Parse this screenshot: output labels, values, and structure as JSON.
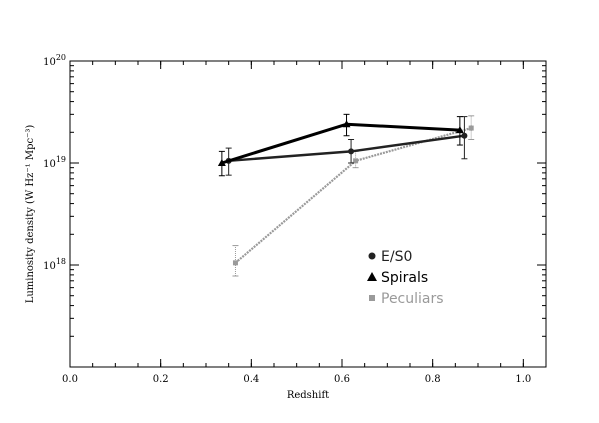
{
  "chart_data": {
    "type": "line",
    "title": "",
    "xlabel": "Redshift",
    "ylabel": "Luminosity density (W Hz⁻¹ Mpc⁻³)",
    "xlim": [
      0.0,
      1.05
    ],
    "ylim": [
      1e+17,
      1e+20
    ],
    "yscale": "log",
    "x_ticks": [
      0.0,
      0.2,
      0.4,
      0.6,
      0.8,
      1.0
    ],
    "x_tick_labels": [
      "0.0",
      "0.2",
      "0.4",
      "0.6",
      "0.8",
      "1.0"
    ],
    "y_ticks": [
      1e+18,
      1e+19,
      1e+20
    ],
    "y_tick_labels": [
      {
        "base": "10",
        "exp": "18"
      },
      {
        "base": "10",
        "exp": "19"
      },
      {
        "base": "10",
        "exp": "20"
      }
    ],
    "grid": false,
    "legend_placement": "lower-right",
    "series": [
      {
        "name": "E/S0",
        "color": "#222222",
        "marker": "circle",
        "x": [
          0.35,
          0.62,
          0.87
        ],
        "y": [
          1.05e+19,
          1.3e+19,
          1.85e+19
        ],
        "err_low": [
          7.6e+18,
          1e+19,
          1.1e+19
        ],
        "err_high": [
          1.4e+19,
          1.7e+19,
          2.85e+19
        ]
      },
      {
        "name": "Spirals",
        "color": "#000000",
        "marker": "triangle",
        "x": [
          0.335,
          0.61,
          0.86
        ],
        "y": [
          1e+19,
          2.4e+19,
          2.1e+19
        ],
        "err_low": [
          7.5e+18,
          1.85e+19,
          1.5e+19
        ],
        "err_high": [
          1.3e+19,
          3e+19,
          2.85e+19
        ]
      },
      {
        "name": "Peculiars",
        "color": "#9a9a9a",
        "marker": "square",
        "x": [
          0.365,
          0.63,
          0.885
        ],
        "y": [
          1.05e+18,
          1.05e+19,
          2.2e+19
        ],
        "err_low": [
          7.8e+17,
          9e+18,
          1.7e+19
        ],
        "err_high": [
          1.55e+18,
          1.3e+19,
          2.9e+19
        ]
      }
    ]
  }
}
